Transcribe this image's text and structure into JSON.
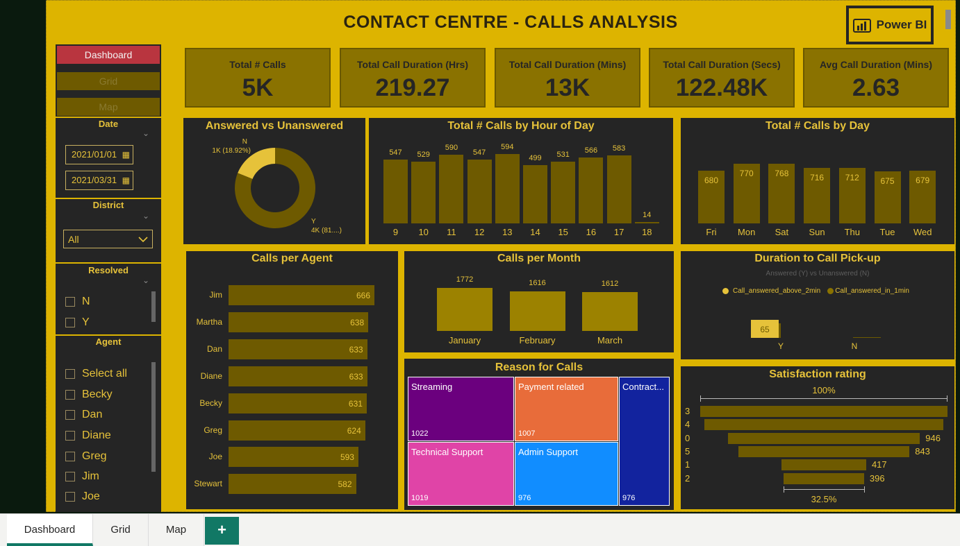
{
  "header": {
    "title": "CONTACT CENTRE - CALLS ANALYSIS",
    "logo_label": "Power BI"
  },
  "nav": {
    "dashboard": "Dashboard",
    "grid": "Grid",
    "map": "Map"
  },
  "slicers": {
    "date": {
      "title": "Date",
      "start": "2021/01/01",
      "end": "2021/03/31"
    },
    "district": {
      "title": "District",
      "value": "All"
    },
    "resolved": {
      "title": "Resolved",
      "options": [
        "N",
        "Y"
      ]
    },
    "agent": {
      "title": "Agent",
      "options": [
        "Select all",
        "Becky",
        "Dan",
        "Diane",
        "Greg",
        "Jim",
        "Joe"
      ]
    }
  },
  "kpis": [
    {
      "label": "Total # Calls",
      "value": "5K"
    },
    {
      "label": "Total Call Duration (Hrs)",
      "value": "219.27"
    },
    {
      "label": "Total Call Duration (Mins)",
      "value": "13K"
    },
    {
      "label": "Total Call Duration (Secs)",
      "value": "122.48K"
    },
    {
      "label": "Avg Call Duration (Mins)",
      "value": "2.63"
    }
  ],
  "colors": {
    "accent": "#ddb400",
    "panel": "#252525",
    "bar": "#6e5a00",
    "text": "#e6c23a",
    "active_nav": "#b9353f"
  },
  "chart_data": [
    {
      "type": "pie",
      "title": "Answered vs Unanswered",
      "categories": [
        "N",
        "Y"
      ],
      "values": [
        18.92,
        81.08
      ],
      "labels": [
        "1K (18.92%)",
        "4K (81....)"
      ]
    },
    {
      "type": "bar",
      "title": "Total # Calls by Hour of Day",
      "categories": [
        "9",
        "10",
        "11",
        "12",
        "13",
        "14",
        "15",
        "16",
        "17",
        "18"
      ],
      "values": [
        547,
        529,
        590,
        547,
        594,
        499,
        531,
        566,
        583,
        14
      ]
    },
    {
      "type": "bar",
      "title": "Total # Calls by Day",
      "categories": [
        "Fri",
        "Mon",
        "Sat",
        "Sun",
        "Thu",
        "Tue",
        "Wed"
      ],
      "values": [
        680,
        770,
        768,
        716,
        712,
        675,
        679
      ]
    },
    {
      "type": "bar",
      "title": "Calls per Agent",
      "categories": [
        "Jim",
        "Martha",
        "Dan",
        "Diane",
        "Becky",
        "Greg",
        "Joe",
        "Stewart"
      ],
      "values": [
        666,
        638,
        633,
        633,
        631,
        624,
        593,
        582
      ]
    },
    {
      "type": "bar",
      "title": "Calls per Month",
      "categories": [
        "January",
        "February",
        "March"
      ],
      "values": [
        1772,
        1616,
        1612
      ]
    },
    {
      "type": "bar",
      "title": "Duration to Call Pick-up",
      "subtitle": "Answered (Y) vs Unanswered (N)",
      "categories": [
        "Y",
        "N"
      ],
      "series": [
        {
          "name": "Call_answered_above_2min",
          "values": [
            65,
            0
          ]
        },
        {
          "name": "Call_answered_in_1min",
          "values": [
            70,
            0
          ]
        }
      ]
    },
    {
      "type": "table",
      "title": "Reason for Calls",
      "categories": [
        "Streaming",
        "Payment related",
        "Contract...",
        "Technical Support",
        "Admin Support"
      ],
      "values": [
        1022,
        1007,
        976,
        1019,
        976
      ]
    },
    {
      "type": "bar",
      "title": "Satisfaction rating",
      "categories": [
        "3",
        "4",
        "0",
        "5",
        "1",
        "2"
      ],
      "values": [
        1218,
        1175,
        946,
        843,
        417,
        396
      ],
      "top_label": "100%",
      "bottom_label": "32.5%"
    }
  ],
  "labels": {
    "treemap": [
      {
        "name": "Streaming",
        "value": "1022",
        "color": "#6b007e"
      },
      {
        "name": "Payment related",
        "value": "1007",
        "color": "#e86c3a"
      },
      {
        "name": "Contract...",
        "value": "976",
        "color": "#12239e"
      },
      {
        "name": "Technical Support",
        "value": "1019",
        "color": "#e044a7"
      },
      {
        "name": "Admin Support",
        "value": "976",
        "color": "#118dff"
      }
    ],
    "funnel_values": [
      "",
      "",
      "946",
      "843",
      "417",
      "396"
    ]
  },
  "tabs": [
    "Dashboard",
    "Grid",
    "Map"
  ],
  "add_tab": "+"
}
